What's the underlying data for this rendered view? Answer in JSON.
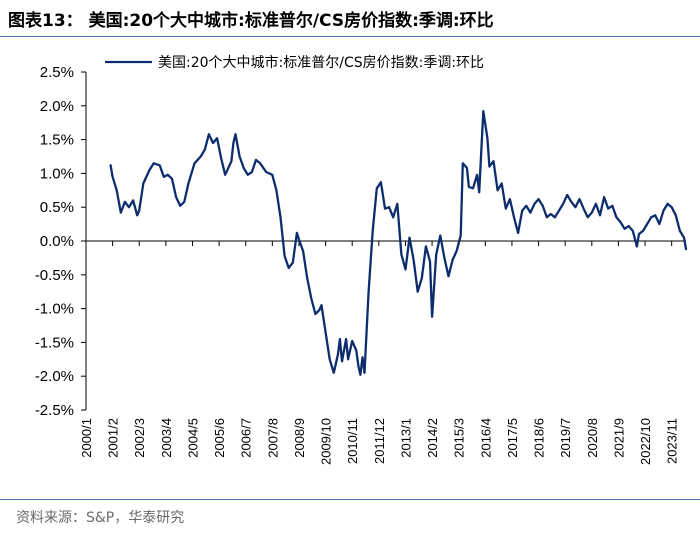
{
  "figure": {
    "title": "图表13： 美国:20个大中城市:标准普尔/CS房价指数:季调:环比",
    "source": "资料来源：S&P，华泰研究"
  },
  "chart_data": {
    "type": "line",
    "title": "",
    "xlabel": "",
    "ylabel": "",
    "grid": false,
    "legend_position": "top",
    "ylim": [
      -0.025,
      0.025
    ],
    "y_ticks": [
      "2.5%",
      "2.0%",
      "1.5%",
      "1.0%",
      "0.5%",
      "0.0%",
      "-0.5%",
      "-1.0%",
      "-1.5%",
      "-2.0%",
      "-2.5%"
    ],
    "y_tick_values": [
      0.025,
      0.02,
      0.015,
      0.01,
      0.005,
      0,
      -0.005,
      -0.01,
      -0.015,
      -0.02,
      -0.025
    ],
    "x_ticks": [
      "2000/1",
      "2001/2",
      "2002/3",
      "2003/4",
      "2004/5",
      "2005/6",
      "2006/7",
      "2007/8",
      "2008/9",
      "2009/10",
      "2010/11",
      "2011/12",
      "2013/1",
      "2014/2",
      "2015/3",
      "2016/4",
      "2017/5",
      "2018/6",
      "2019/7",
      "2020/8",
      "2021/9",
      "2022/10",
      "2023/11"
    ],
    "x_range": [
      "2000-01",
      "2024-06"
    ],
    "series": [
      {
        "name": "美国:20个大中城市:标准普尔/CS房价指数:季调:环比",
        "color": "#0d2d6e",
        "points": [
          [
            "2001-01",
            0.0112
          ],
          [
            "2001-02",
            0.0095
          ],
          [
            "2001-04",
            0.0075
          ],
          [
            "2001-06",
            0.0042
          ],
          [
            "2001-08",
            0.0058
          ],
          [
            "2001-10",
            0.005
          ],
          [
            "2001-12",
            0.006
          ],
          [
            "2002-02",
            0.0038
          ],
          [
            "2002-03",
            0.0045
          ],
          [
            "2002-05",
            0.0085
          ],
          [
            "2002-08",
            0.0105
          ],
          [
            "2002-10",
            0.0115
          ],
          [
            "2003-01",
            0.0112
          ],
          [
            "2003-03",
            0.0095
          ],
          [
            "2003-05",
            0.0098
          ],
          [
            "2003-07",
            0.0092
          ],
          [
            "2003-09",
            0.0065
          ],
          [
            "2003-11",
            0.0052
          ],
          [
            "2004-01",
            0.0058
          ],
          [
            "2004-03",
            0.0085
          ],
          [
            "2004-06",
            0.0115
          ],
          [
            "2004-09",
            0.0125
          ],
          [
            "2004-11",
            0.0135
          ],
          [
            "2005-01",
            0.0158
          ],
          [
            "2005-03",
            0.0145
          ],
          [
            "2005-05",
            0.0152
          ],
          [
            "2005-07",
            0.0122
          ],
          [
            "2005-09",
            0.0098
          ],
          [
            "2005-12",
            0.0118
          ],
          [
            "2006-01",
            0.0145
          ],
          [
            "2006-02",
            0.0158
          ],
          [
            "2006-04",
            0.0125
          ],
          [
            "2006-06",
            0.0108
          ],
          [
            "2006-08",
            0.0098
          ],
          [
            "2006-10",
            0.0102
          ],
          [
            "2006-12",
            0.012
          ],
          [
            "2007-02",
            0.0115
          ],
          [
            "2007-05",
            0.0102
          ],
          [
            "2007-08",
            0.0098
          ],
          [
            "2007-10",
            0.0075
          ],
          [
            "2007-12",
            0.0035
          ],
          [
            "2008-02",
            -0.0022
          ],
          [
            "2008-04",
            -0.004
          ],
          [
            "2008-06",
            -0.0032
          ],
          [
            "2008-08",
            0.0012
          ],
          [
            "2008-09",
            0.0002
          ],
          [
            "2008-11",
            -0.0015
          ],
          [
            "2009-01",
            -0.0055
          ],
          [
            "2009-03",
            -0.0085
          ],
          [
            "2009-05",
            -0.0108
          ],
          [
            "2009-07",
            -0.0102
          ],
          [
            "2009-08",
            -0.0095
          ],
          [
            "2009-10",
            -0.0135
          ],
          [
            "2009-12",
            -0.0175
          ],
          [
            "2010-02",
            -0.0195
          ],
          [
            "2010-04",
            -0.0168
          ],
          [
            "2010-05",
            -0.0145
          ],
          [
            "2010-06",
            -0.0178
          ],
          [
            "2010-08",
            -0.0145
          ],
          [
            "2010-09",
            -0.0175
          ],
          [
            "2010-11",
            -0.0148
          ],
          [
            "2011-01",
            -0.0162
          ],
          [
            "2011-02",
            -0.0185
          ],
          [
            "2011-03",
            -0.0198
          ],
          [
            "2011-04",
            -0.0172
          ],
          [
            "2011-05",
            -0.0195
          ],
          [
            "2011-07",
            -0.0075
          ],
          [
            "2011-09",
            0.0015
          ],
          [
            "2011-11",
            0.0078
          ],
          [
            "2012-01",
            0.0087
          ],
          [
            "2012-03",
            0.0048
          ],
          [
            "2012-05",
            0.005
          ],
          [
            "2012-07",
            0.0035
          ],
          [
            "2012-09",
            0.0055
          ],
          [
            "2012-11",
            -0.002
          ],
          [
            "2013-01",
            -0.0042
          ],
          [
            "2013-03",
            0.0005
          ],
          [
            "2013-05",
            -0.0028
          ],
          [
            "2013-07",
            -0.0075
          ],
          [
            "2013-09",
            -0.0055
          ],
          [
            "2013-11",
            -0.0008
          ],
          [
            "2014-01",
            -0.003
          ],
          [
            "2014-02",
            -0.0112
          ],
          [
            "2014-04",
            -0.002
          ],
          [
            "2014-06",
            0.0008
          ],
          [
            "2014-08",
            -0.0025
          ],
          [
            "2014-10",
            -0.0052
          ],
          [
            "2014-12",
            -0.0028
          ],
          [
            "2015-02",
            -0.0015
          ],
          [
            "2015-04",
            0.0008
          ],
          [
            "2015-05",
            0.0115
          ],
          [
            "2015-07",
            0.0108
          ],
          [
            "2015-08",
            0.008
          ],
          [
            "2015-10",
            0.0078
          ],
          [
            "2015-12",
            0.0098
          ],
          [
            "2016-01",
            0.0072
          ],
          [
            "2016-03",
            0.0192
          ],
          [
            "2016-05",
            0.0152
          ],
          [
            "2016-06",
            0.011
          ],
          [
            "2016-08",
            0.0118
          ],
          [
            "2016-10",
            0.0075
          ],
          [
            "2016-12",
            0.0085
          ],
          [
            "2017-02",
            0.0048
          ],
          [
            "2017-04",
            0.0062
          ],
          [
            "2017-06",
            0.0035
          ],
          [
            "2017-08",
            0.0012
          ],
          [
            "2017-10",
            0.0045
          ],
          [
            "2017-12",
            0.0052
          ],
          [
            "2018-02",
            0.0042
          ],
          [
            "2018-04",
            0.0055
          ],
          [
            "2018-06",
            0.0062
          ],
          [
            "2018-08",
            0.0052
          ],
          [
            "2018-10",
            0.0035
          ],
          [
            "2018-12",
            0.004
          ],
          [
            "2019-02",
            0.0035
          ],
          [
            "2019-04",
            0.0045
          ],
          [
            "2019-06",
            0.0055
          ],
          [
            "2019-08",
            0.0068
          ],
          [
            "2019-10",
            0.0058
          ],
          [
            "2019-12",
            0.005
          ],
          [
            "2020-02",
            0.0062
          ],
          [
            "2020-04",
            0.0048
          ],
          [
            "2020-06",
            0.0035
          ],
          [
            "2020-08",
            0.0042
          ],
          [
            "2020-10",
            0.0055
          ],
          [
            "2020-12",
            0.0038
          ],
          [
            "2021-02",
            0.0065
          ],
          [
            "2021-04",
            0.0048
          ],
          [
            "2021-06",
            0.0052
          ],
          [
            "2021-08",
            0.0035
          ],
          [
            "2021-10",
            0.0028
          ],
          [
            "2021-12",
            0.0018
          ],
          [
            "2022-02",
            0.0022
          ],
          [
            "2022-04",
            0.0015
          ],
          [
            "2022-06",
            -0.0008
          ],
          [
            "2022-07",
            0.001
          ],
          [
            "2022-09",
            0.0015
          ],
          [
            "2022-11",
            0.0025
          ],
          [
            "2023-01",
            0.0035
          ],
          [
            "2023-03",
            0.0038
          ],
          [
            "2023-05",
            0.0025
          ],
          [
            "2023-07",
            0.0045
          ],
          [
            "2023-09",
            0.0055
          ],
          [
            "2023-11",
            0.005
          ],
          [
            "2024-01",
            0.0038
          ],
          [
            "2024-03",
            0.0015
          ],
          [
            "2024-05",
            0.0005
          ],
          [
            "2024-06",
            -0.0012
          ]
        ]
      }
    ]
  }
}
